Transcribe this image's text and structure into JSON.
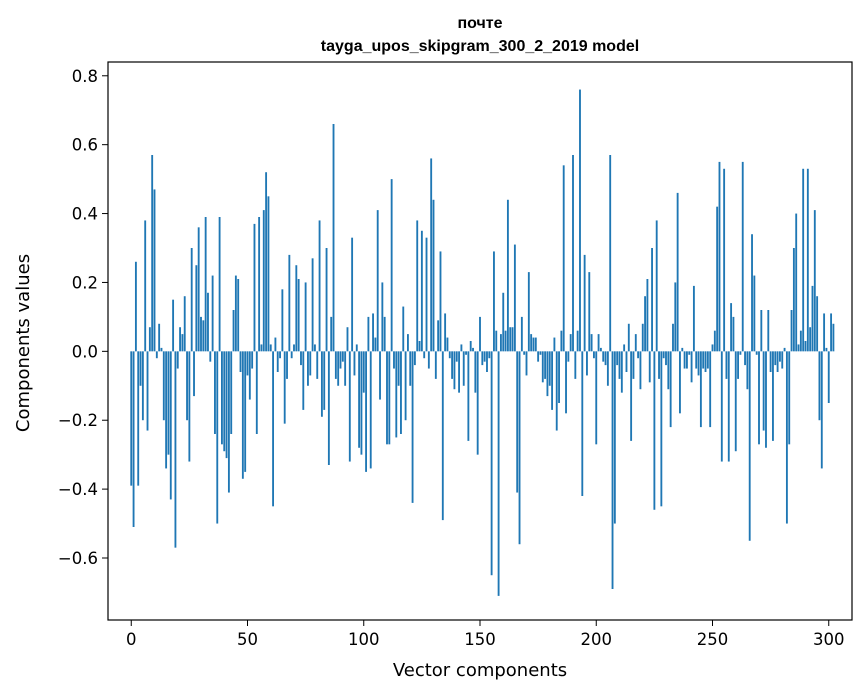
{
  "chart_data": {
    "type": "bar",
    "title": "почте",
    "subtitle": "tayga_upos_skipgram_300_2_2019 model",
    "xlabel": "Vector components",
    "ylabel": "Components values",
    "xlim": [
      -10,
      310
    ],
    "ylim": [
      -0.78,
      0.84
    ],
    "x_ticks": [
      0,
      50,
      100,
      150,
      200,
      250,
      300
    ],
    "y_ticks": [
      -0.6,
      -0.4,
      -0.2,
      0.0,
      0.2,
      0.4,
      0.6,
      0.8
    ],
    "x_tick_labels": [
      "0",
      "50",
      "100",
      "150",
      "200",
      "250",
      "300"
    ],
    "y_tick_labels": [
      "−0.6",
      "−0.4",
      "−0.2",
      "0.0",
      "0.2",
      "0.4",
      "0.6",
      "0.8"
    ],
    "bar_color": "#1f77b4",
    "grid": false,
    "values": [
      -0.39,
      -0.51,
      0.26,
      -0.39,
      -0.1,
      -0.2,
      0.38,
      -0.23,
      0.07,
      0.57,
      0.47,
      -0.02,
      0.08,
      0.01,
      -0.2,
      -0.34,
      -0.3,
      -0.43,
      0.15,
      -0.57,
      -0.05,
      0.07,
      0.05,
      0.16,
      -0.2,
      -0.32,
      0.3,
      -0.13,
      0.25,
      0.36,
      0.1,
      0.09,
      0.39,
      0.17,
      -0.03,
      0.22,
      -0.24,
      -0.5,
      0.39,
      -0.27,
      -0.29,
      -0.31,
      -0.41,
      -0.24,
      0.12,
      0.22,
      0.21,
      -0.06,
      -0.37,
      -0.35,
      -0.07,
      -0.14,
      -0.05,
      0.37,
      -0.24,
      0.39,
      0.02,
      0.41,
      0.52,
      0.45,
      0.02,
      -0.45,
      0.04,
      -0.06,
      -0.02,
      0.18,
      -0.21,
      -0.08,
      0.28,
      -0.02,
      0.02,
      0.25,
      0.21,
      -0.04,
      -0.17,
      0.2,
      -0.1,
      -0.07,
      0.27,
      0.02,
      -0.08,
      0.38,
      -0.19,
      -0.17,
      0.3,
      -0.33,
      0.1,
      0.66,
      -0.08,
      -0.1,
      -0.05,
      -0.03,
      -0.1,
      0.07,
      -0.32,
      0.33,
      -0.07,
      0.02,
      -0.28,
      -0.3,
      -0.12,
      -0.35,
      0.1,
      -0.34,
      0.11,
      0.04,
      0.41,
      -0.14,
      0.2,
      0.1,
      -0.27,
      -0.27,
      0.5,
      -0.05,
      -0.25,
      -0.1,
      -0.24,
      0.13,
      -0.2,
      0.05,
      -0.1,
      -0.44,
      -0.04,
      0.38,
      0.03,
      0.35,
      -0.02,
      0.33,
      -0.05,
      0.56,
      0.44,
      -0.08,
      0.09,
      0.29,
      -0.49,
      0.11,
      0.04,
      -0.02,
      -0.08,
      -0.11,
      -0.03,
      -0.12,
      0.02,
      -0.1,
      -0.01,
      -0.26,
      0.03,
      0.01,
      -0.12,
      -0.3,
      0.1,
      -0.04,
      -0.03,
      -0.06,
      -0.02,
      -0.65,
      0.29,
      0.06,
      -0.71,
      0.05,
      0.17,
      0.06,
      0.44,
      0.07,
      0.07,
      0.31,
      -0.41,
      -0.56,
      0.1,
      -0.01,
      -0.07,
      0.23,
      0.05,
      0.04,
      0.04,
      -0.03,
      -0.01,
      -0.09,
      -0.08,
      -0.13,
      -0.1,
      -0.17,
      0.04,
      -0.23,
      -0.15,
      0.06,
      0.54,
      -0.18,
      -0.03,
      0.05,
      0.57,
      -0.08,
      0.06,
      0.76,
      -0.42,
      0.28,
      -0.07,
      0.23,
      0.05,
      -0.02,
      -0.27,
      0.05,
      0.01,
      -0.03,
      -0.04,
      -0.1,
      0.57,
      -0.69,
      -0.5,
      -0.04,
      -0.08,
      -0.12,
      0.02,
      -0.06,
      0.08,
      -0.26,
      -0.08,
      0.05,
      -0.02,
      -0.11,
      0.08,
      0.16,
      0.21,
      -0.09,
      0.3,
      -0.46,
      0.38,
      -0.08,
      -0.45,
      -0.02,
      -0.04,
      -0.11,
      -0.22,
      0.08,
      0.2,
      0.46,
      -0.18,
      0.01,
      -0.05,
      -0.05,
      -0.01,
      -0.09,
      0.19,
      -0.05,
      -0.07,
      -0.22,
      -0.05,
      -0.06,
      -0.05,
      -0.22,
      0.02,
      0.06,
      0.42,
      0.55,
      -0.32,
      0.53,
      -0.08,
      -0.32,
      0.14,
      0.1,
      -0.29,
      -0.08,
      -0.01,
      0.55,
      -0.04,
      -0.11,
      -0.55,
      0.34,
      0.22,
      -0.01,
      -0.27,
      0.12,
      -0.23,
      -0.28,
      0.12,
      -0.06,
      -0.26,
      -0.04,
      -0.06,
      -0.03,
      -0.05,
      0.01,
      -0.5,
      -0.27,
      0.12,
      0.3,
      0.4,
      0.02,
      0.06,
      0.53,
      0.03,
      0.53,
      0.07,
      0.19,
      0.41,
      0.16,
      -0.2,
      -0.34,
      0.11,
      0.01,
      -0.15,
      0.11,
      0.08
    ]
  }
}
